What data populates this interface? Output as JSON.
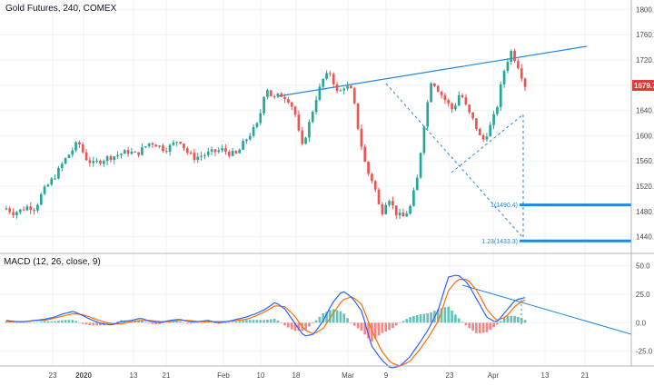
{
  "colors": {
    "up": "#26a69a",
    "down": "#ef5350",
    "trend": "#1e88e5",
    "macd": "#2962ff",
    "signal": "#ff6d00",
    "tag": "#e53935"
  },
  "chart_data": [
    {
      "type": "candlestick",
      "title": "Gold Futures, 240, COMEX",
      "ylim": [
        1415,
        1815
      ],
      "y_ticks": [
        "1800.0",
        "1760.0",
        "1720.0",
        "1680.0",
        "1640.0",
        "1600.0",
        "1560.0",
        "1520.0",
        "1480.0",
        "1440.0"
      ],
      "y_tick_values": [
        1800,
        1760,
        1720,
        1680,
        1640,
        1600,
        1560,
        1520,
        1480,
        1440
      ],
      "x_ticks": [
        "23",
        "2020",
        "13",
        "21",
        "Feb",
        "10",
        "18",
        "Mar",
        "9",
        "23",
        "Apr",
        "13",
        "21"
      ],
      "last_price": 1679.7,
      "last_price_label": "1679.7",
      "fib_levels": [
        {
          "label": "1(1490.4)",
          "value": 1490.4
        },
        {
          "label": "1.23(1433.3)",
          "value": 1433.3
        }
      ],
      "close_path": [
        1485,
        1478,
        1482,
        1488,
        1485,
        1510,
        1525,
        1540,
        1560,
        1575,
        1590,
        1565,
        1555,
        1560,
        1565,
        1568,
        1572,
        1575,
        1570,
        1580,
        1590,
        1585,
        1578,
        1585,
        1595,
        1575,
        1565,
        1568,
        1572,
        1575,
        1578,
        1572,
        1570,
        1590,
        1605,
        1620,
        1680,
        1658,
        1665,
        1660,
        1640,
        1580,
        1618,
        1660,
        1690,
        1700,
        1665,
        1680,
        1670,
        1600,
        1545,
        1525,
        1475,
        1505,
        1478,
        1470,
        1485,
        1530,
        1620,
        1690,
        1672,
        1655,
        1640,
        1670,
        1640,
        1620,
        1590,
        1610,
        1640,
        1700,
        1735,
        1712,
        1680
      ]
    },
    {
      "type": "line",
      "title": "MACD (12, 26, close, 9)",
      "ylim": [
        -38,
        60
      ],
      "y_ticks": [
        "50.0",
        "25.0",
        "0.0",
        "-25.0"
      ],
      "y_tick_values": [
        50,
        25,
        0,
        -25
      ],
      "series": [
        {
          "values": [
            2,
            1,
            1,
            2,
            3,
            5,
            8,
            10,
            6,
            2,
            -1,
            -2,
            1,
            2,
            4,
            1,
            0,
            2,
            3,
            1,
            1,
            2,
            0,
            1,
            3,
            5,
            8,
            12,
            18,
            12,
            0,
            -12,
            -10,
            2,
            18,
            28,
            22,
            10,
            -20,
            -32,
            -40,
            -38,
            -30,
            -18,
            -5,
            12,
            40,
            42,
            35,
            20,
            5,
            0,
            10,
            20,
            22
          ]
        },
        {
          "values": [
            1,
            1,
            1,
            2,
            2,
            4,
            6,
            8,
            7,
            4,
            1,
            -1,
            -1,
            1,
            2,
            2,
            1,
            1,
            2,
            2,
            1,
            1,
            1,
            1,
            2,
            3,
            6,
            10,
            15,
            14,
            6,
            -6,
            -10,
            -5,
            8,
            20,
            23,
            16,
            -6,
            -24,
            -35,
            -38,
            -34,
            -24,
            -12,
            2,
            28,
            38,
            38,
            28,
            12,
            2,
            5,
            15,
            20
          ]
        }
      ]
    }
  ]
}
